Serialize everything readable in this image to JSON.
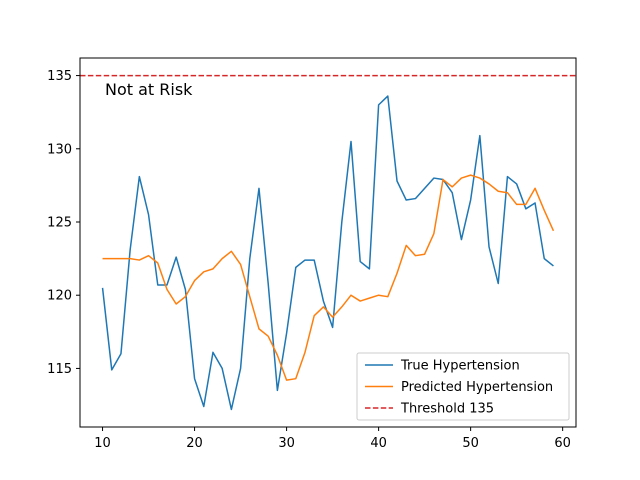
{
  "chart_data": {
    "type": "line",
    "title": "",
    "xlabel": "",
    "ylabel": "",
    "xlim": [
      7.55,
      61.45
    ],
    "ylim": [
      111.0,
      136.2
    ],
    "x_ticks": [
      10,
      20,
      30,
      40,
      50,
      60
    ],
    "y_ticks": [
      115,
      120,
      125,
      130,
      135
    ],
    "grid": false,
    "legend_position": "lower-right",
    "annotation": "Not at Risk",
    "x": [
      10,
      11,
      12,
      13,
      14,
      15,
      16,
      17,
      18,
      19,
      20,
      21,
      22,
      23,
      24,
      25,
      26,
      27,
      28,
      29,
      30,
      31,
      32,
      33,
      34,
      35,
      36,
      37,
      38,
      39,
      40,
      41,
      42,
      43,
      44,
      45,
      46,
      47,
      48,
      49,
      50,
      51,
      52,
      53,
      54,
      55,
      56,
      57,
      58,
      59
    ],
    "series": [
      {
        "name": "True Hypertension",
        "color": "#1f77b4",
        "style": "solid",
        "values": [
          120.5,
          114.9,
          116.0,
          123.1,
          128.1,
          125.5,
          120.7,
          120.7,
          122.6,
          120.4,
          114.3,
          112.4,
          116.1,
          115.0,
          112.2,
          115.0,
          122.5,
          127.3,
          120.8,
          113.5,
          117.4,
          121.9,
          122.4,
          122.4,
          119.6,
          117.8,
          125.0,
          130.5,
          122.3,
          121.8,
          133.0,
          133.6,
          127.8,
          126.5,
          126.6,
          127.3,
          128.0,
          127.9,
          127.0,
          123.8,
          126.5,
          130.9,
          123.3,
          120.8,
          128.1,
          127.6,
          125.9,
          126.3,
          122.5,
          122.0
        ]
      },
      {
        "name": "Predicted Hypertension",
        "color": "#ff7f0e",
        "style": "solid",
        "values": [
          122.5,
          122.5,
          122.5,
          122.5,
          122.4,
          122.7,
          122.2,
          120.4,
          119.4,
          119.9,
          121.0,
          121.6,
          121.8,
          122.5,
          123.0,
          122.1,
          119.9,
          117.7,
          117.2,
          115.9,
          114.2,
          114.3,
          116.1,
          118.6,
          119.2,
          118.5,
          119.2,
          120.0,
          119.6,
          119.8,
          120.0,
          119.9,
          121.5,
          123.4,
          122.7,
          122.8,
          124.2,
          127.9,
          127.4,
          128.0,
          128.2,
          128.0,
          127.6,
          127.1,
          127.0,
          126.2,
          126.2,
          127.3,
          125.8,
          124.4
        ]
      },
      {
        "name": "Threshold 135",
        "color": "#d62728",
        "style": "dashed",
        "constant": 135
      }
    ]
  }
}
